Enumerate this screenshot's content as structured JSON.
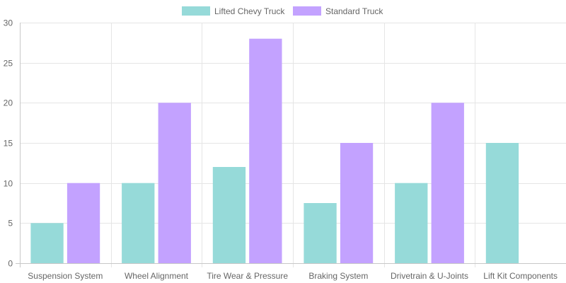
{
  "chart_data": {
    "type": "bar",
    "categories": [
      "Suspension System",
      "Wheel Alignment",
      "Tire Wear & Pressure",
      "Braking System",
      "Drivetrain & U-Joints",
      "Lift Kit Components"
    ],
    "series": [
      {
        "name": "Lifted Chevy Truck",
        "values": [
          5,
          10,
          12,
          7.5,
          10,
          15
        ],
        "color": "#96dad9"
      },
      {
        "name": "Standard Truck",
        "values": [
          10,
          20,
          28,
          15,
          20,
          null
        ],
        "color": "#c3a2ff"
      }
    ],
    "y_ticks": [
      "0",
      "5",
      "10",
      "15",
      "20",
      "25",
      "30"
    ],
    "ylim": [
      0,
      30
    ],
    "grid": true,
    "legend_position": "top-center"
  }
}
